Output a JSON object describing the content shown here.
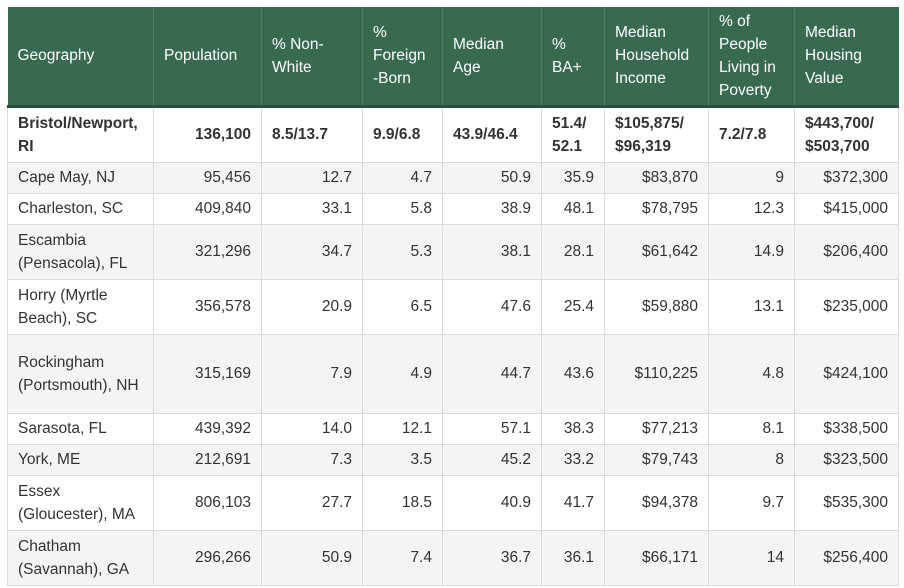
{
  "table": {
    "headers": [
      "Geography",
      "Population",
      "% Non-White",
      "% Foreign -Born",
      "Median Age",
      "% BA+",
      "Median Household Income",
      "% of People Living in Poverty",
      "Median Housing Value"
    ],
    "featured_row": [
      "Bristol/Newport, RI",
      "136,100",
      "8.5/13.7",
      "9.9/6.8",
      "43.9/46.4",
      "51.4/ 52.1",
      "$105,875/ $96,319",
      "7.2/7.8",
      "$443,700/ $503,700"
    ],
    "rows": [
      [
        "Cape May, NJ",
        "95,456",
        "12.7",
        "4.7",
        "50.9",
        "35.9",
        "$83,870",
        "9",
        "$372,300"
      ],
      [
        "Charleston, SC",
        "409,840",
        "33.1",
        "5.8",
        "38.9",
        "48.1",
        "$78,795",
        "12.3",
        "$415,000"
      ],
      [
        "Escambia (Pensacola), FL",
        "321,296",
        "34.7",
        "5.3",
        "38.1",
        "28.1",
        "$61,642",
        "14.9",
        "$206,400"
      ],
      [
        "Horry (Myrtle Beach), SC",
        "356,578",
        "20.9",
        "6.5",
        "47.6",
        "25.4",
        "$59,880",
        "13.1",
        "$235,000"
      ],
      [
        "Rockingham (Portsmouth), NH",
        "315,169",
        "7.9",
        "4.9",
        "44.7",
        "43.6",
        "$110,225",
        "4.8",
        "$424,100"
      ],
      [
        "Sarasota, FL",
        "439,392",
        "14.0",
        "12.1",
        "57.1",
        "38.3",
        "$77,213",
        "8.1",
        "$338,500"
      ],
      [
        "York, ME",
        "212,691",
        "7.3",
        "3.5",
        "45.2",
        "33.2",
        "$79,743",
        "8",
        "$323,500"
      ],
      [
        "Essex (Gloucester), MA",
        "806,103",
        "27.7",
        "18.5",
        "40.9",
        "41.7",
        "$94,378",
        "9.7",
        "$535,300"
      ],
      [
        "Chatham (Savannah), GA",
        "296,266",
        "50.9",
        "7.4",
        "36.7",
        "36.1",
        "$66,171",
        "14",
        "$256,400"
      ]
    ]
  },
  "colors": {
    "header_bg": "#376a4f",
    "header_text": "#ffffff",
    "body_text": "#333333",
    "grid": "#dcdcdc"
  }
}
